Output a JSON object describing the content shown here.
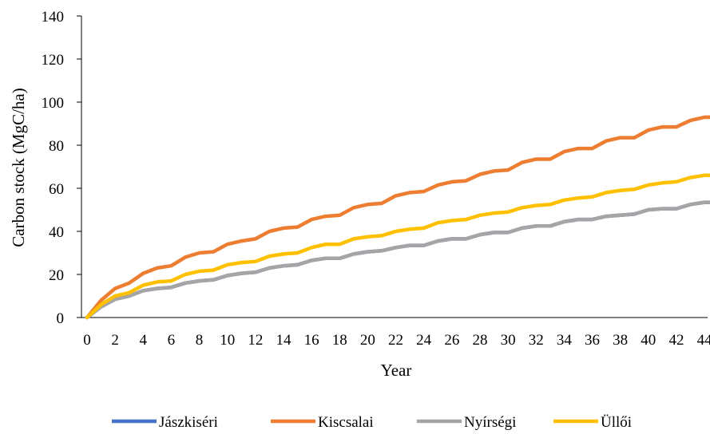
{
  "chart_data": {
    "type": "line",
    "title": "",
    "xlabel": "Year",
    "ylabel": "Carbon stock (MgC/ha)",
    "xlim": [
      0,
      45
    ],
    "ylim": [
      0,
      140
    ],
    "x_ticks": [
      0,
      2,
      4,
      6,
      8,
      10,
      12,
      14,
      16,
      18,
      20,
      22,
      24,
      26,
      28,
      30,
      32,
      34,
      36,
      38,
      40,
      42,
      44
    ],
    "y_ticks": [
      0,
      20,
      40,
      60,
      80,
      100,
      120,
      140
    ],
    "legend_position": "bottom",
    "grid": false,
    "x": [
      0,
      1,
      2,
      3,
      4,
      5,
      6,
      7,
      8,
      9,
      10,
      11,
      12,
      13,
      14,
      15,
      16,
      17,
      18,
      19,
      20,
      21,
      22,
      23,
      24,
      25,
      26,
      27,
      28,
      29,
      30,
      31,
      32,
      33,
      34,
      35,
      36,
      37,
      38,
      39,
      40,
      41,
      42,
      43,
      44,
      45
    ],
    "series": [
      {
        "name": "Jászkiséri",
        "color": "#4472C4",
        "values": [
          0,
          5,
          8.5,
          10,
          12.5,
          13.5,
          14,
          16,
          17,
          17.5,
          19.5,
          20.5,
          21,
          23,
          24,
          24.5,
          26.5,
          27.5,
          27.5,
          29.5,
          30.5,
          31,
          32.5,
          33.5,
          33.5,
          35.5,
          36.5,
          36.5,
          38.5,
          39.5,
          39.5,
          41.5,
          42.5,
          42.5,
          44.5,
          45.5,
          45.5,
          47,
          47.5,
          48,
          50,
          50.5,
          50.5,
          52.5,
          53.5,
          53.5
        ]
      },
      {
        "name": "Kiscsalai",
        "color": "#ED7D31",
        "values": [
          0,
          8,
          13.5,
          16,
          20.5,
          23,
          24,
          28,
          30,
          30.5,
          34,
          35.5,
          36.5,
          40,
          41.5,
          42,
          45.5,
          47,
          47.5,
          51,
          52.5,
          53,
          56.5,
          58,
          58.5,
          61.5,
          63,
          63.5,
          66.5,
          68,
          68.5,
          72,
          73.5,
          73.5,
          77,
          78.5,
          78.5,
          82,
          83.5,
          83.5,
          87,
          88.5,
          88.5,
          91.5,
          93,
          93
        ]
      },
      {
        "name": "Nyírségi",
        "color": "#A5A5A5",
        "values": [
          0,
          5,
          8.5,
          10,
          12.5,
          13.5,
          14,
          16,
          17,
          17.5,
          19.5,
          20.5,
          21,
          23,
          24,
          24.5,
          26.5,
          27.5,
          27.5,
          29.5,
          30.5,
          31,
          32.5,
          33.5,
          33.5,
          35.5,
          36.5,
          36.5,
          38.5,
          39.5,
          39.5,
          41.5,
          42.5,
          42.5,
          44.5,
          45.5,
          45.5,
          47,
          47.5,
          48,
          50,
          50.5,
          50.5,
          52.5,
          53.5,
          53.5
        ]
      },
      {
        "name": "Üllői",
        "color": "#FFC000",
        "values": [
          0,
          6,
          10,
          11.5,
          15,
          16.5,
          17,
          20,
          21.5,
          22,
          24.5,
          25.5,
          26,
          28.5,
          29.5,
          30,
          32.5,
          34,
          34,
          36.5,
          37.5,
          38,
          40,
          41,
          41.5,
          44,
          45,
          45.5,
          47.5,
          48.5,
          49,
          51,
          52,
          52.5,
          54.5,
          55.5,
          56,
          58,
          59,
          59.5,
          61.5,
          62.5,
          63,
          65,
          66,
          66
        ]
      }
    ]
  }
}
